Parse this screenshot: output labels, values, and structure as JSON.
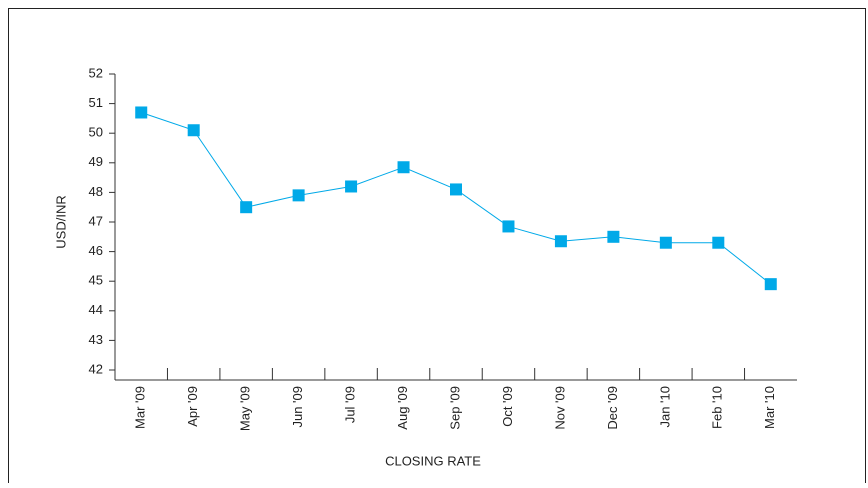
{
  "chart_data": {
    "type": "line",
    "x_label": "CLOSING RATE",
    "y_label": "USD/INR",
    "categories": [
      "Mar '09",
      "Apr '09",
      "May '09",
      "Jun '09",
      "Jul '09",
      "Aug '09",
      "Sep '09",
      "Oct '09",
      "Nov '09",
      "Dec '09",
      "Jan '10",
      "Feb '10",
      "Mar '10"
    ],
    "series": [
      {
        "name": "USD/INR",
        "color": "#00a9e8",
        "values": [
          50.7,
          50.1,
          47.5,
          47.9,
          48.2,
          48.85,
          48.1,
          46.85,
          46.35,
          46.5,
          46.3,
          46.3,
          44.9
        ]
      }
    ],
    "ylim": [
      42,
      52
    ],
    "yticks": [
      42,
      43,
      44,
      45,
      46,
      47,
      48,
      49,
      50,
      51,
      52
    ]
  }
}
